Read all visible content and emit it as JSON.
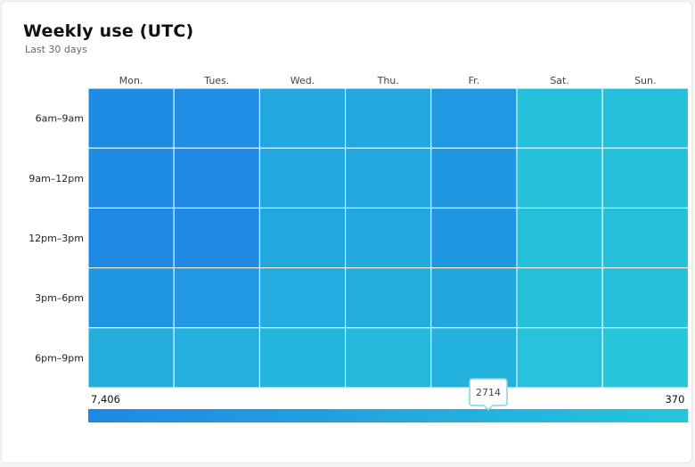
{
  "header": {
    "title": "Weekly use (UTC)",
    "subtitle": "Last 30 days"
  },
  "chart_data": {
    "type": "heatmap",
    "title": "Weekly use (UTC)",
    "subtitle": "Last 30 days",
    "columns": [
      "Mon.",
      "Tues.",
      "Wed.",
      "Thu.",
      "Fr.",
      "Sat.",
      "Sun."
    ],
    "rows": [
      "6am–9am",
      "9am–12pm",
      "12pm–3pm",
      "3pm–6pm",
      "6pm–9pm"
    ],
    "values": [
      [
        6900,
        6700,
        3900,
        3800,
        5600,
        900,
        900
      ],
      [
        7100,
        7406,
        3900,
        3800,
        5700,
        900,
        900
      ],
      [
        7300,
        7200,
        3800,
        3700,
        5800,
        900,
        900
      ],
      [
        5800,
        5500,
        3300,
        3200,
        4000,
        900,
        900
      ],
      [
        3100,
        2900,
        2300,
        2000,
        2714,
        800,
        370
      ]
    ],
    "color_scale": {
      "min": 370,
      "max": 7406,
      "min_color": "#26c6da",
      "max_color": "#1e88e5"
    },
    "tooltip": {
      "value": "2714",
      "row": "6pm–9pm",
      "column": "Fr."
    },
    "legend": {
      "position": "bottom",
      "left_label": "7,406",
      "right_label": "370"
    }
  }
}
